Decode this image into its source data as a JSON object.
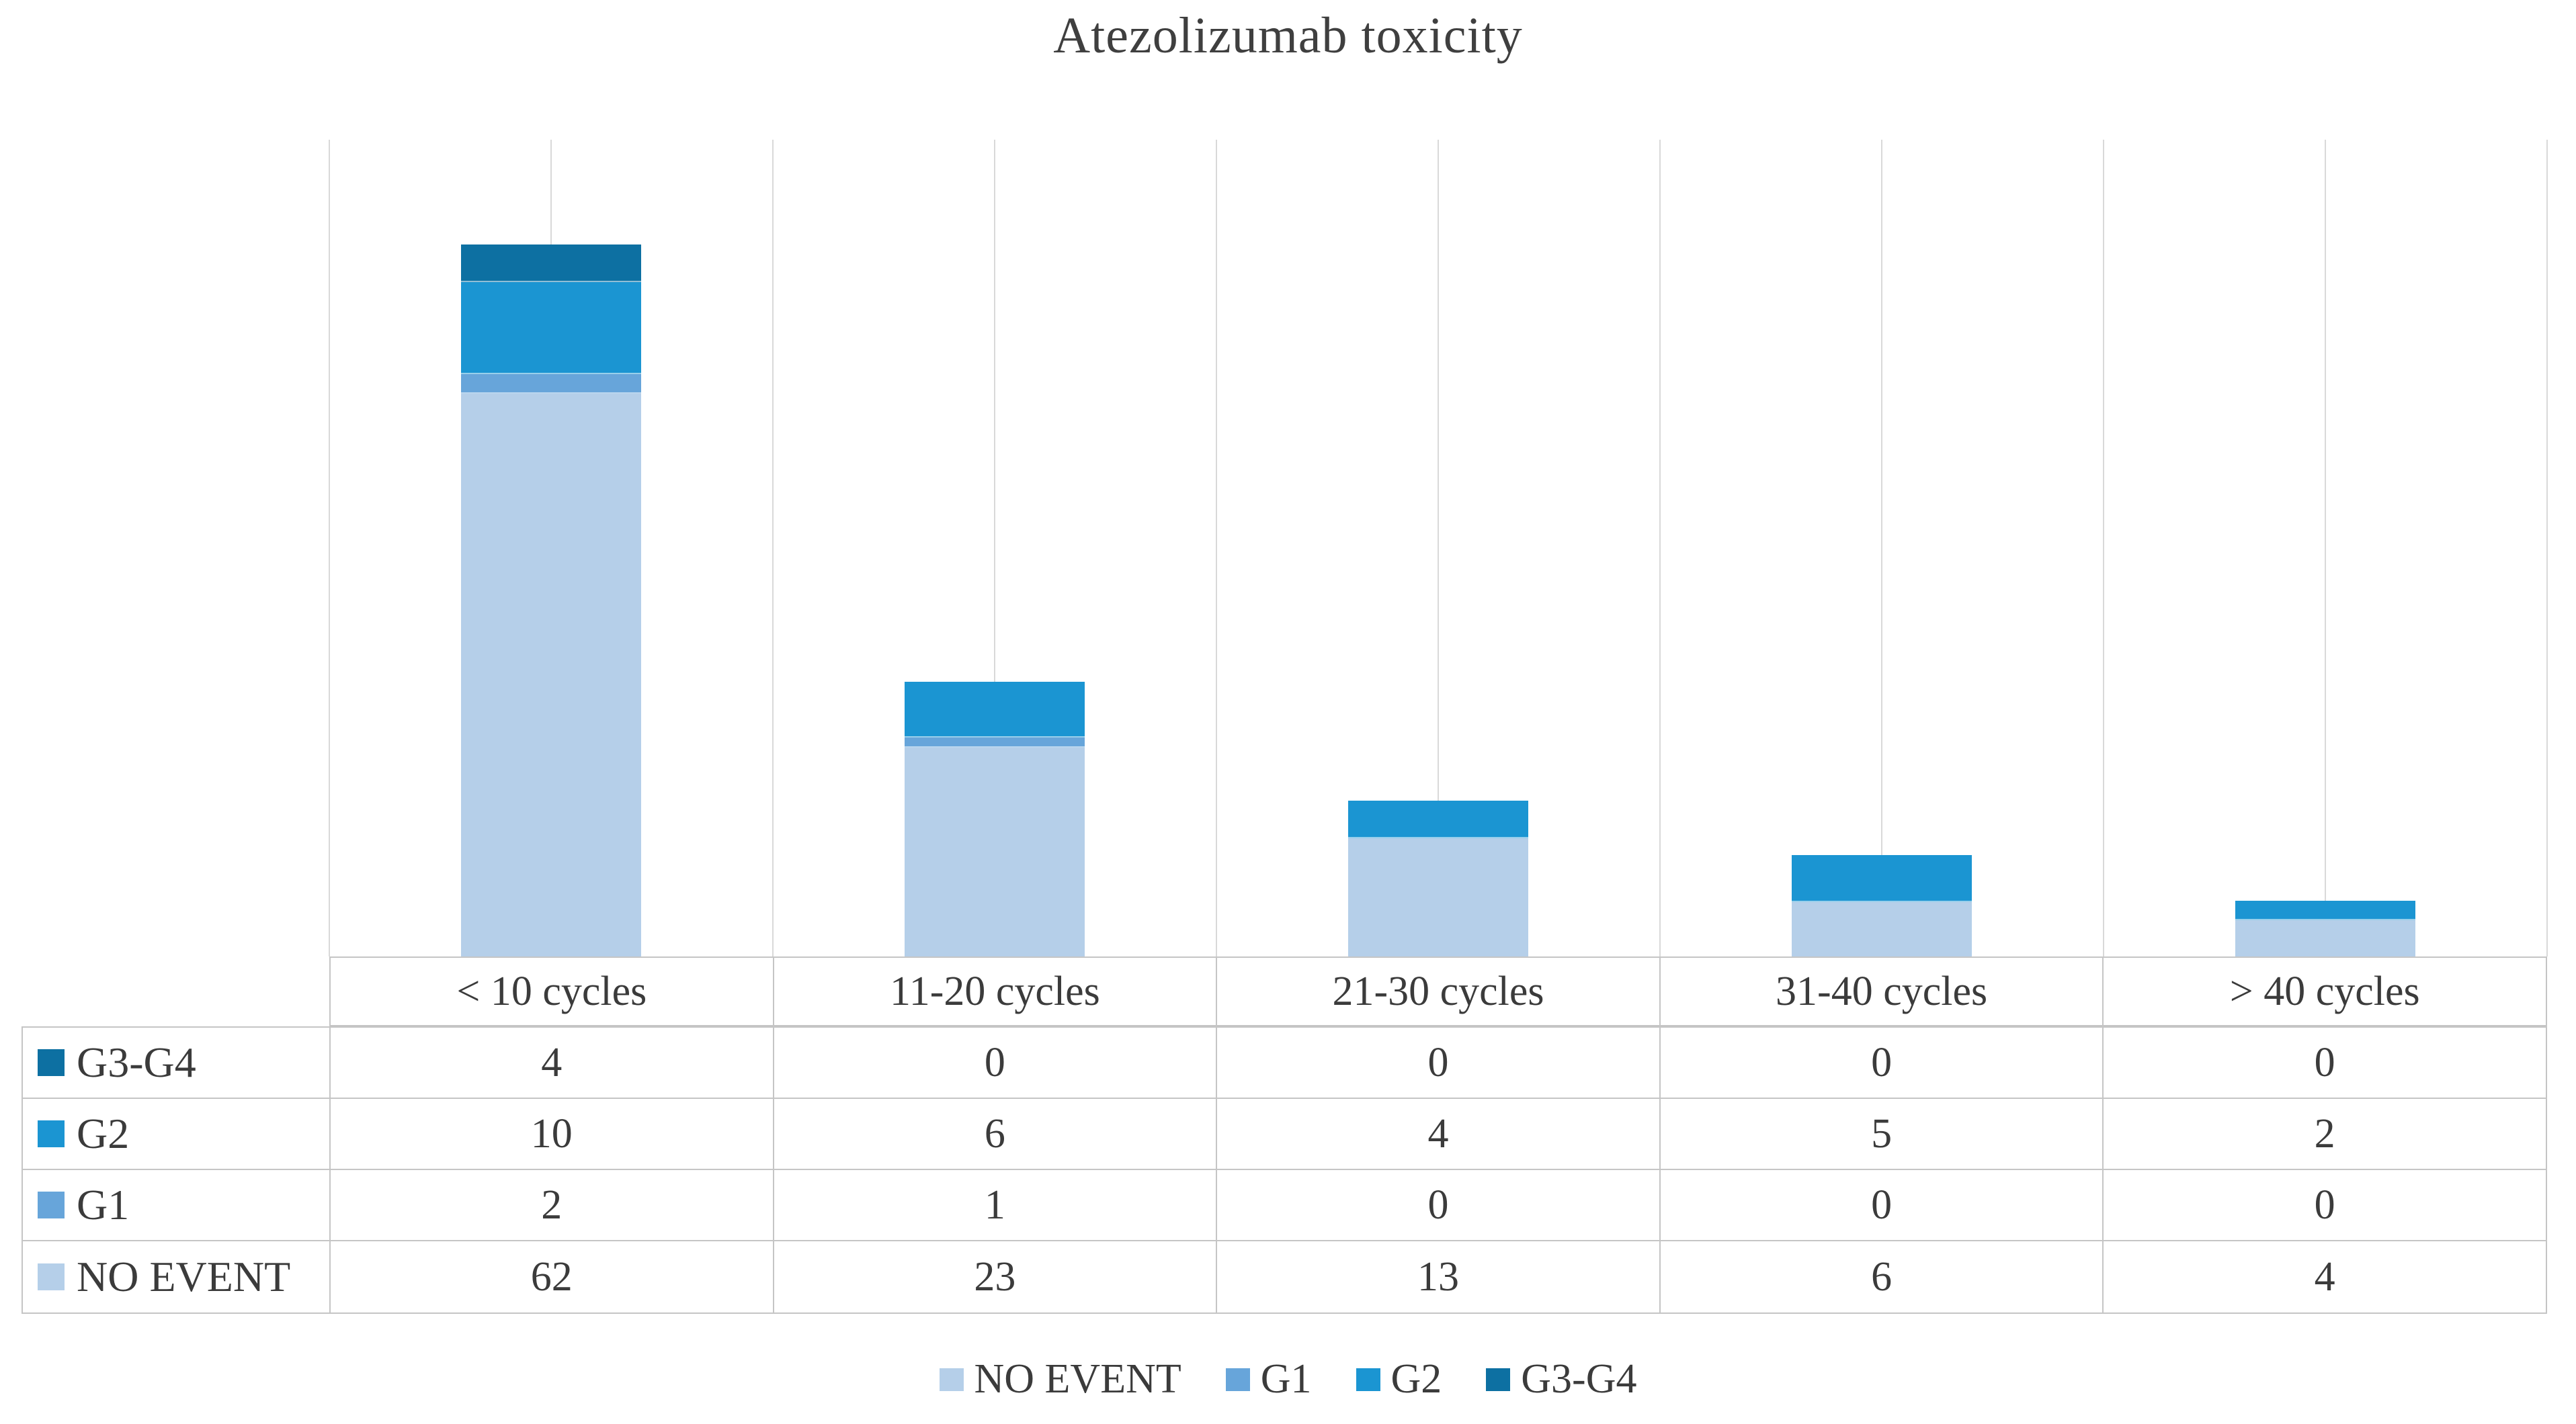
{
  "title": "Atezolizumab toxicity",
  "chart_data": {
    "type": "bar",
    "stacked": true,
    "title": "Atezolizumab toxicity",
    "categories": [
      "< 10 cycles",
      "11-20 cycles",
      "21-30 cycles",
      "31-40 cycles",
      "> 40 cycles"
    ],
    "series": [
      {
        "name": "NO EVENT",
        "color": "#b5cfe9",
        "values": [
          62,
          23,
          13,
          6,
          4
        ]
      },
      {
        "name": "G1",
        "color": "#67a5da",
        "values": [
          2,
          1,
          0,
          0,
          0
        ]
      },
      {
        "name": "G2",
        "color": "#1b95d2",
        "values": [
          10,
          6,
          4,
          5,
          2
        ]
      },
      {
        "name": "G3-G4",
        "color": "#0d70a2",
        "values": [
          4,
          0,
          0,
          0,
          0
        ]
      }
    ],
    "xlabel": "",
    "ylabel": "",
    "ylim": [
      0,
      90
    ],
    "grid": "vertical-only",
    "gridline_color": "#d9d9d9",
    "legend_position": "bottom",
    "data_table": {
      "column_headers": [
        "< 10 cycles",
        "11-20 cycles",
        "21-30 cycles",
        "31-40 cycles",
        "> 40 cycles"
      ],
      "rows": [
        {
          "label": "G3-G4",
          "values": [
            4,
            0,
            0,
            0,
            0
          ]
        },
        {
          "label": "G2",
          "values": [
            10,
            6,
            4,
            5,
            2
          ]
        },
        {
          "label": "G1",
          "values": [
            2,
            1,
            0,
            0,
            0
          ]
        },
        {
          "label": "NO EVENT",
          "values": [
            62,
            23,
            13,
            6,
            4
          ]
        }
      ]
    }
  },
  "legend": {
    "items": [
      "NO EVENT",
      "G1",
      "G2",
      "G3-G4"
    ]
  }
}
